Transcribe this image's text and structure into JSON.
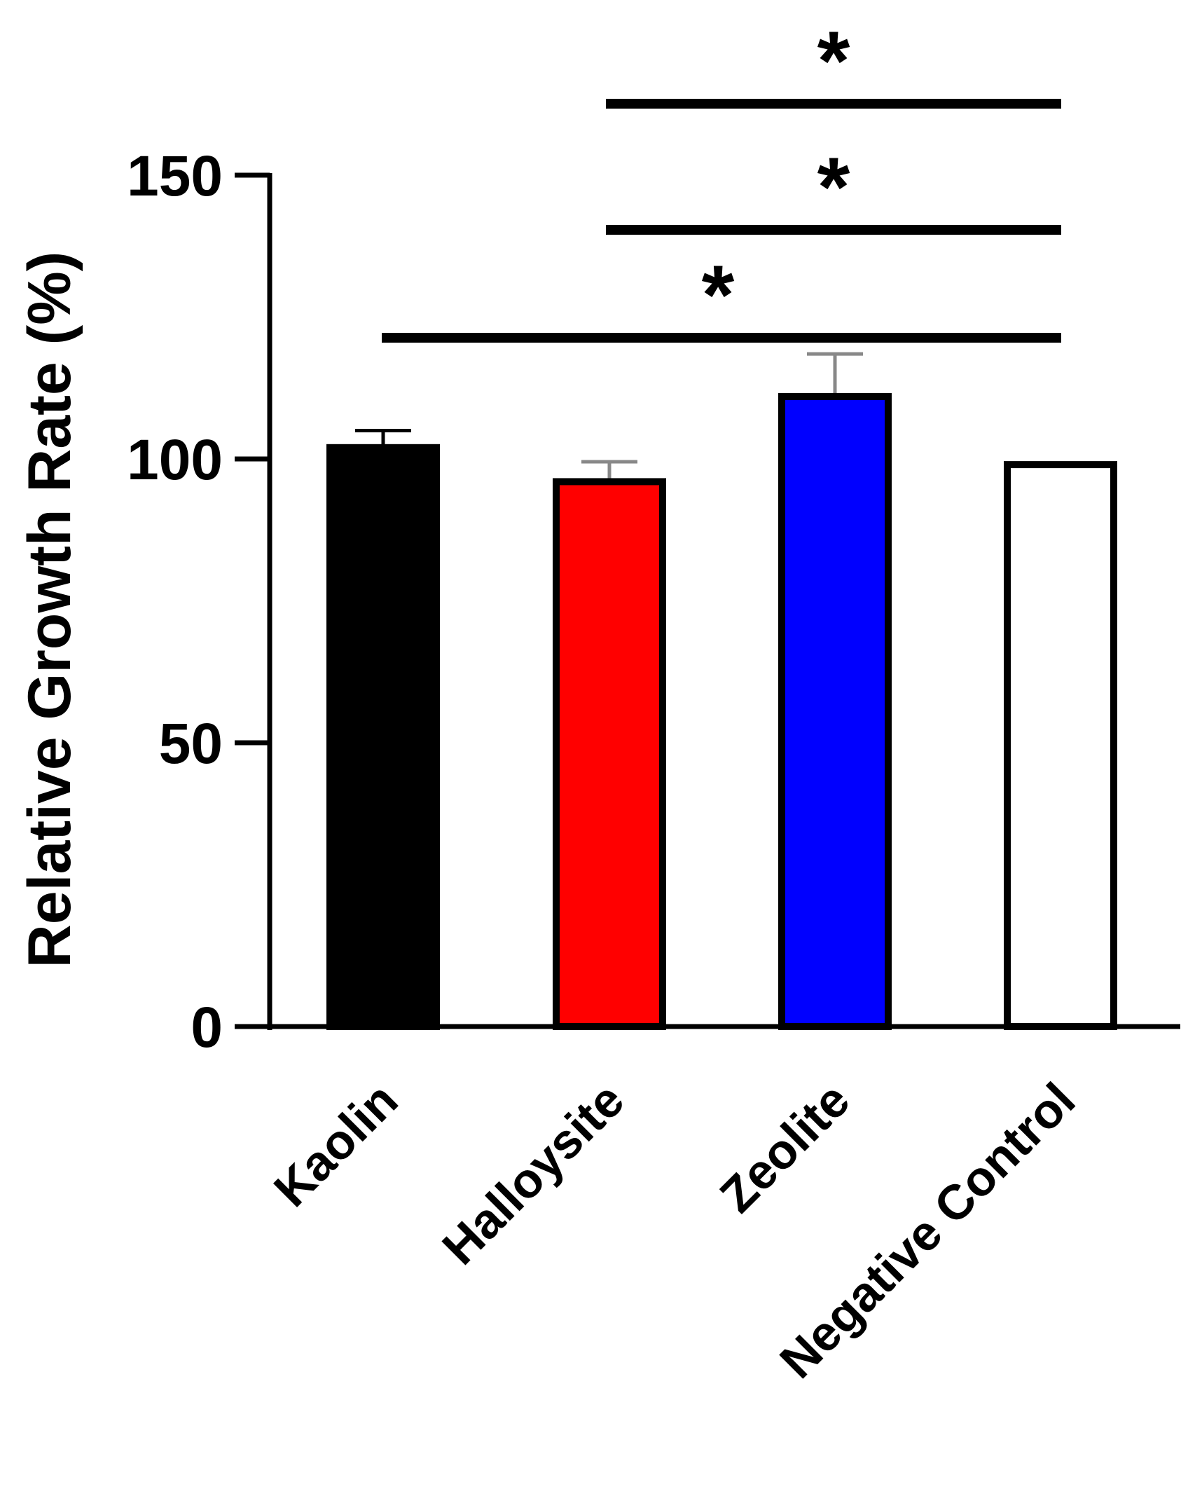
{
  "chart_data": {
    "type": "bar",
    "title": "",
    "xlabel": "",
    "ylabel": "Relative Growth Rate (%)",
    "ylim": [
      0,
      150
    ],
    "yticks": [
      0,
      50,
      100,
      150
    ],
    "categories": [
      "Kaolin",
      "Halloysite",
      "Zeolite",
      "Negative Control"
    ],
    "values": [
      102,
      96,
      111,
      99
    ],
    "errors": [
      3,
      3.5,
      7.5,
      0
    ],
    "bar_colors": [
      "#000000",
      "#ff0000",
      "#0000ff",
      "#ffffff"
    ],
    "grid": false,
    "legend": "none",
    "significance": [
      {
        "from": "Kaolin",
        "to": "Negative Control",
        "label": "*"
      },
      {
        "from": "Halloysite",
        "to": "Negative Control",
        "label": "*"
      },
      {
        "from": "Halloysite",
        "to": "Negative Control",
        "label": "*"
      }
    ]
  }
}
